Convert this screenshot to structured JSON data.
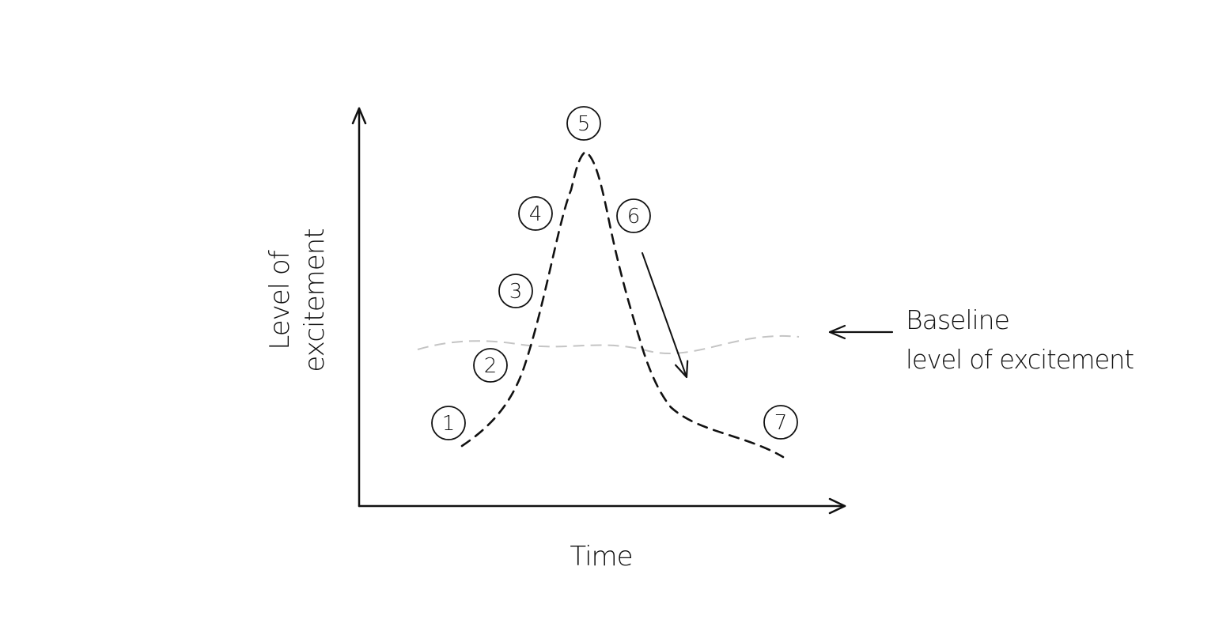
{
  "diagram": {
    "y_axis_label_line1": "Level of",
    "y_axis_label_line2": "excitement",
    "x_axis_label": "Time",
    "baseline_label_line1": "Baseline",
    "baseline_label_line2": "level of excitement",
    "stages": [
      "1",
      "2",
      "3",
      "4",
      "5",
      "6",
      "7"
    ]
  },
  "colors": {
    "ink": "#111111",
    "baseline": "#c4c4c4",
    "background": "#ffffff"
  }
}
